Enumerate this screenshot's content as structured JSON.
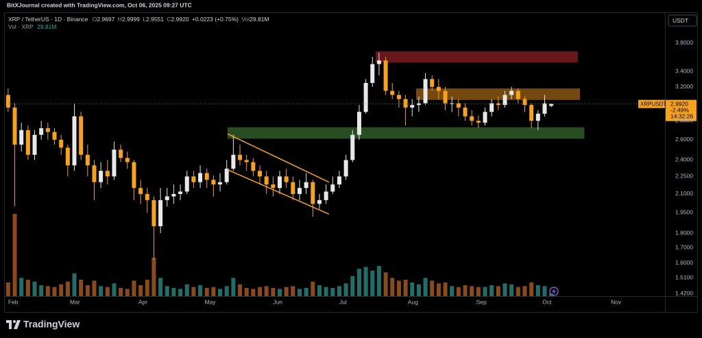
{
  "header": {
    "attribution": "BitXJournal created with TradingView.com, Oct 06, 2025 09:27 UTC",
    "symbol": "XRP / TetherUS · 1D · Binance",
    "legend": [
      {
        "key": "O",
        "text": "2.9697"
      },
      {
        "key": "H",
        "text": "2.9999"
      },
      {
        "key": "L",
        "text": "2.9551"
      },
      {
        "key": "C",
        "text": "2.9920"
      }
    ],
    "change": "+0.0223 (+0.75%)",
    "volume_key": "Vol",
    "volume_text": "29.81M",
    "volume_row_key": "Vol · XRP",
    "volume_row_text": "29.81M",
    "currency": "USDT"
  },
  "price_tag": {
    "symbol": "XRPUSDT",
    "price": "2.9920",
    "change": "-2.49%",
    "countdown": "14:32:26"
  },
  "footer": {
    "brand": "TradingView"
  },
  "chart_data": {
    "type": "candlestick",
    "log_scale": true,
    "grid": false,
    "up_color": "#e8e8e8",
    "down_color": "#f7a21b",
    "volume_up_color": "#1f6f68",
    "volume_down_color": "#8a4a1a",
    "x": [
      0,
      3,
      6,
      9,
      12,
      15,
      18,
      21,
      24,
      27,
      30,
      33,
      36,
      39,
      42,
      45,
      48,
      51,
      54,
      57,
      60,
      63,
      66,
      69,
      72,
      75,
      78,
      81,
      84,
      87,
      90,
      93,
      96,
      99,
      102,
      105,
      108,
      111,
      114,
      117,
      120,
      123,
      126,
      129,
      132,
      135,
      138,
      141,
      144,
      147,
      150,
      153,
      156,
      159,
      162,
      165,
      168,
      171,
      174,
      177,
      180,
      183,
      186,
      189,
      192,
      195,
      198,
      201,
      204,
      207,
      210,
      213,
      216,
      219,
      222,
      225,
      228,
      231,
      234,
      237,
      240,
      243,
      246
    ],
    "open": [
      3.1,
      2.95,
      2.55,
      2.7,
      2.45,
      2.65,
      2.72,
      2.68,
      2.6,
      2.52,
      2.35,
      2.85,
      2.45,
      2.35,
      2.2,
      2.3,
      2.25,
      2.5,
      2.42,
      2.38,
      2.15,
      2.1,
      2.05,
      1.85,
      2.05,
      2.08,
      2.1,
      2.12,
      2.25,
      2.2,
      2.28,
      2.22,
      2.18,
      2.2,
      2.32,
      2.45,
      2.4,
      2.38,
      2.3,
      2.25,
      2.18,
      2.15,
      2.25,
      2.2,
      2.1,
      2.15,
      2.2,
      2.02,
      2.05,
      2.12,
      2.18,
      2.25,
      2.4,
      2.65,
      2.9,
      3.25,
      3.5,
      3.55,
      3.15,
      3.1,
      3.05,
      2.95,
      2.98,
      3.0,
      3.3,
      3.2,
      3.15,
      3.0,
      3.0,
      2.95,
      2.85,
      2.8,
      2.78,
      2.9,
      3.0,
      2.98,
      3.1,
      3.15,
      3.05,
      2.98,
      2.8,
      2.88,
      2.9697
    ],
    "high": [
      3.18,
      3.0,
      2.78,
      2.75,
      2.7,
      2.8,
      2.78,
      2.72,
      2.65,
      2.55,
      3.0,
      2.9,
      2.55,
      2.4,
      2.38,
      2.4,
      2.58,
      2.55,
      2.48,
      2.4,
      2.22,
      2.15,
      2.08,
      2.15,
      2.15,
      2.18,
      2.18,
      2.3,
      2.3,
      2.35,
      2.32,
      2.26,
      2.28,
      2.4,
      2.65,
      2.55,
      2.45,
      2.42,
      2.35,
      2.3,
      2.25,
      2.3,
      2.32,
      2.25,
      2.22,
      2.28,
      2.22,
      2.1,
      2.18,
      2.25,
      2.3,
      2.45,
      2.7,
      2.98,
      3.3,
      3.6,
      3.66,
      3.6,
      3.25,
      3.15,
      3.1,
      3.05,
      3.08,
      3.38,
      3.35,
      3.3,
      3.2,
      3.08,
      3.05,
      3.0,
      2.92,
      2.86,
      2.95,
      3.05,
      3.08,
      3.15,
      3.2,
      3.18,
      3.08,
      3.0,
      2.92,
      3.1,
      2.9999
    ],
    "low": [
      2.9,
      2.0,
      2.48,
      2.4,
      2.4,
      2.6,
      2.6,
      2.55,
      2.45,
      2.25,
      2.3,
      2.4,
      2.25,
      2.05,
      2.15,
      2.18,
      2.22,
      2.38,
      2.32,
      2.05,
      2.02,
      1.95,
      1.62,
      1.8,
      2.0,
      2.02,
      2.05,
      2.1,
      2.15,
      2.15,
      2.15,
      2.08,
      2.12,
      2.18,
      2.3,
      2.35,
      2.3,
      2.25,
      2.18,
      2.1,
      2.08,
      2.1,
      2.15,
      2.05,
      2.05,
      2.1,
      1.92,
      1.98,
      2.02,
      2.1,
      2.15,
      2.22,
      2.38,
      2.6,
      2.88,
      3.2,
      3.35,
      3.1,
      3.05,
      2.95,
      2.75,
      2.85,
      2.9,
      2.98,
      3.15,
      3.05,
      2.92,
      2.9,
      2.85,
      2.8,
      2.75,
      2.72,
      2.75,
      2.85,
      2.92,
      2.95,
      3.05,
      3.0,
      2.9,
      2.72,
      2.7,
      2.85,
      2.9551
    ],
    "close": [
      2.95,
      2.55,
      2.7,
      2.45,
      2.65,
      2.72,
      2.68,
      2.6,
      2.52,
      2.35,
      2.85,
      2.45,
      2.35,
      2.2,
      2.3,
      2.25,
      2.5,
      2.42,
      2.38,
      2.15,
      2.1,
      2.05,
      1.85,
      2.05,
      2.08,
      2.1,
      2.12,
      2.25,
      2.2,
      2.28,
      2.22,
      2.18,
      2.2,
      2.32,
      2.45,
      2.4,
      2.38,
      2.3,
      2.25,
      2.18,
      2.15,
      2.25,
      2.2,
      2.1,
      2.15,
      2.2,
      2.02,
      2.05,
      2.12,
      2.18,
      2.25,
      2.4,
      2.65,
      2.9,
      3.25,
      3.5,
      3.55,
      3.15,
      3.1,
      3.05,
      2.95,
      2.98,
      3.0,
      3.3,
      3.2,
      3.15,
      3.0,
      3.0,
      2.95,
      2.85,
      2.8,
      2.78,
      2.9,
      3.0,
      2.98,
      3.1,
      3.15,
      3.05,
      2.98,
      2.8,
      2.88,
      3.0,
      2.992
    ],
    "volume": [
      150,
      900,
      200,
      180,
      160,
      120,
      110,
      100,
      130,
      160,
      250,
      180,
      120,
      170,
      110,
      100,
      140,
      90,
      80,
      170,
      120,
      180,
      420,
      200,
      110,
      90,
      80,
      130,
      100,
      120,
      90,
      100,
      80,
      110,
      200,
      130,
      90,
      80,
      100,
      110,
      90,
      80,
      100,
      110,
      80,
      90,
      160,
      120,
      100,
      90,
      110,
      140,
      220,
      300,
      320,
      280,
      330,
      260,
      200,
      170,
      180,
      150,
      130,
      200,
      170,
      140,
      150,
      110,
      100,
      120,
      110,
      100,
      100,
      120,
      110,
      140,
      130,
      100,
      110,
      150,
      120,
      110,
      29.81
    ],
    "xlim": [
      -1.2,
      297.5
    ],
    "xticks": [
      {
        "value": 0,
        "label": "Feb"
      },
      {
        "value": 28,
        "label": "Mar"
      },
      {
        "value": 59,
        "label": "Apr"
      },
      {
        "value": 89,
        "label": "May"
      },
      {
        "value": 120,
        "label": "Jun"
      },
      {
        "value": 150,
        "label": "Jul"
      },
      {
        "value": 181,
        "label": "Aug"
      },
      {
        "value": 212,
        "label": "Sep"
      },
      {
        "value": 242,
        "label": "Oct"
      },
      {
        "value": 273,
        "label": "Nov"
      }
    ],
    "ylim": [
      1.405,
      4.29
    ],
    "yticks": [
      {
        "value": 3.8,
        "label": "3.8000"
      },
      {
        "value": 3.4,
        "label": "3.4000"
      },
      {
        "value": 3.2,
        "label": "3.2000"
      },
      {
        "value": 2.8,
        "label": "2.8000"
      },
      {
        "value": 2.6,
        "label": "2.6000"
      },
      {
        "value": 2.4,
        "label": "2.4000"
      },
      {
        "value": 2.25,
        "label": "2.2500"
      },
      {
        "value": 2.1,
        "label": "2.1000"
      },
      {
        "value": 1.95,
        "label": "1.9500"
      },
      {
        "value": 1.8,
        "label": "1.8000"
      },
      {
        "value": 1.7,
        "label": "1.7000"
      },
      {
        "value": 1.6,
        "label": "1.6000"
      },
      {
        "value": 1.51,
        "label": "1.5100"
      },
      {
        "value": 1.42,
        "label": "1.4200"
      }
    ],
    "zones": [
      {
        "x1": 166.5,
        "x2": 258,
        "low": 3.52,
        "high": 3.68,
        "color": "#7a1c1f"
      },
      {
        "x1": 184.8,
        "x2": 259,
        "low": 3.04,
        "high": 3.18,
        "color": "#8a5512"
      },
      {
        "x1": 99.4,
        "x2": 261,
        "low": 2.61,
        "high": 2.73,
        "color": "#2f5a28"
      }
    ],
    "lines": [
      {
        "x1": 99.4,
        "x2": 145.3,
        "y1": 2.66,
        "y2": 2.2,
        "color": "#f7a21b"
      },
      {
        "x1": 99.4,
        "x2": 145.3,
        "y1": 2.31,
        "y2": 1.94,
        "color": "#f7a21b"
      }
    ]
  }
}
